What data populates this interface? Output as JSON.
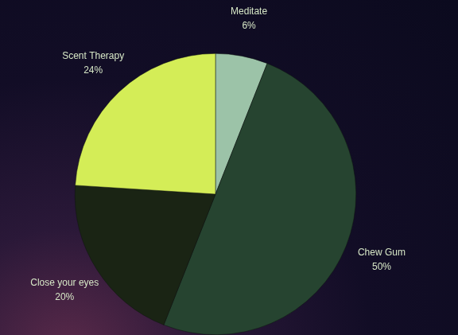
{
  "chart_data": {
    "type": "pie",
    "categories": [
      "Meditate",
      "Chew Gum",
      "Close your eyes",
      "Scent Therapy"
    ],
    "values": [
      6,
      50,
      20,
      24
    ],
    "value_labels": [
      "6%",
      "50%",
      "20%",
      "24%"
    ],
    "colors": [
      "#9cc3a8",
      "#264430",
      "#1a2414",
      "#d4ed57"
    ],
    "data_labels": true
  }
}
